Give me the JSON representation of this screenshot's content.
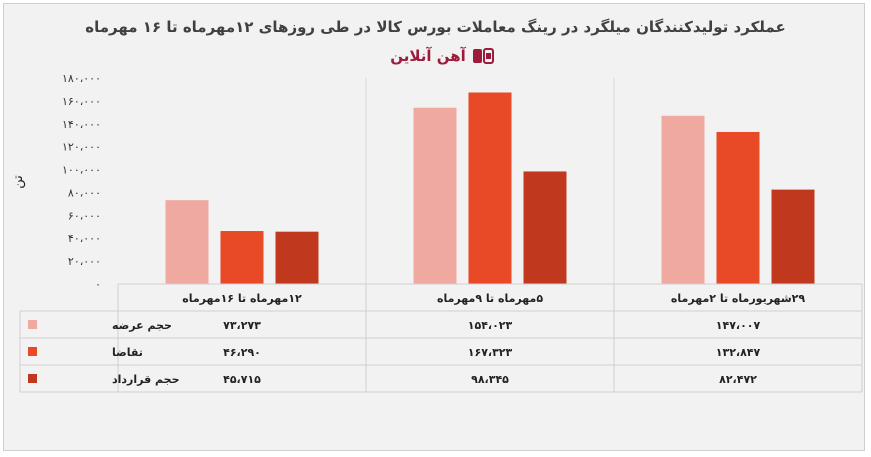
{
  "title": "عملکرد تولیدکنندگان میلگرد در رینگ معاملات بورس کالا در طی روزهای ۱۲مهرماه تا ۱۶ مهرماه",
  "brand": {
    "name": "آهن آنلاین",
    "color": "#9c1c3c"
  },
  "y_unit_label": "تن",
  "chart_data": {
    "type": "bar",
    "title": "عملکرد تولیدکنندگان میلگرد در رینگ معاملات بورس کالا در طی روزهای ۱۲مهرماه تا ۱۶ مهرماه",
    "ylabel": "تن",
    "ylim": [
      0,
      180000
    ],
    "y_ticks": [
      0,
      20000,
      40000,
      60000,
      80000,
      100000,
      120000,
      140000,
      160000,
      180000
    ],
    "y_tick_labels": [
      "۰",
      "۲۰،۰۰۰",
      "۴۰،۰۰۰",
      "۶۰،۰۰۰",
      "۸۰،۰۰۰",
      "۱۰۰،۰۰۰",
      "۱۲۰،۰۰۰",
      "۱۴۰،۰۰۰",
      "۱۶۰،۰۰۰",
      "۱۸۰،۰۰۰"
    ],
    "categories": [
      "۲۹شهریورماه تا ۲مهرماه",
      "۵مهرماه تا ۹مهرماه",
      "۱۲مهرماه تا ۱۶مهرماه"
    ],
    "series": [
      {
        "name": "حجم عرضه",
        "color": "#f0a9a1",
        "values": [
          147007,
          154023,
          73273
        ],
        "labels": [
          "۱۴۷،۰۰۷",
          "۱۵۴،۰۲۳",
          "۷۳،۲۷۳"
        ]
      },
      {
        "name": "تقاضا",
        "color": "#e84a27",
        "values": [
          132847,
          167323,
          46290
        ],
        "labels": [
          "۱۳۲،۸۴۷",
          "۱۶۷،۳۲۳",
          "۴۶،۲۹۰"
        ]
      },
      {
        "name": "حجم قرارداد",
        "color": "#c0391e",
        "values": [
          82472,
          98345,
          45715
        ],
        "labels": [
          "۸۲،۴۷۲",
          "۹۸،۳۴۵",
          "۴۵،۷۱۵"
        ]
      }
    ],
    "category_order": "right-to-left",
    "grid": false,
    "legend": "data-table"
  }
}
